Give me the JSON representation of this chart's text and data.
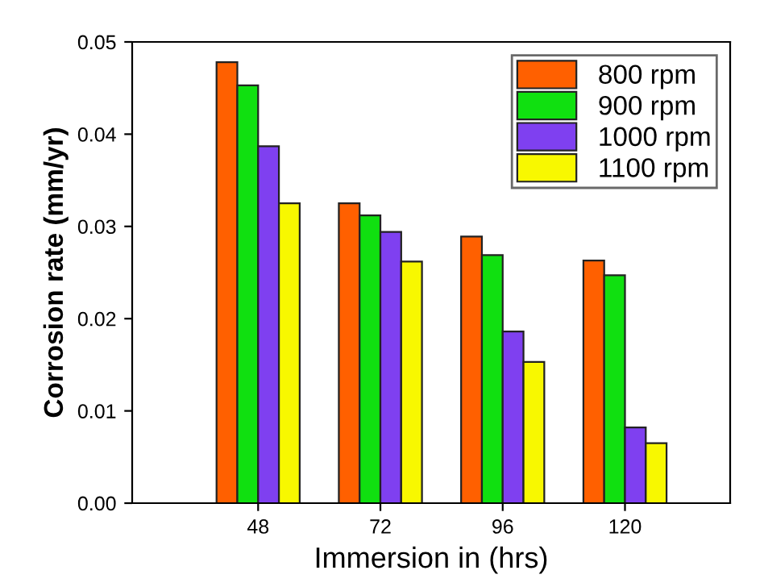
{
  "chart_data": {
    "type": "bar",
    "xlabel": "Immersion in (hrs)",
    "ylabel": "Corrosion rate (mm/yr)",
    "categories": [
      "48",
      "72",
      "96",
      "120"
    ],
    "series": [
      {
        "name": "800 rpm",
        "color": "#ff6000",
        "values": [
          0.0478,
          0.0325,
          0.0289,
          0.0263
        ]
      },
      {
        "name": "900 rpm",
        "color": "#10e010",
        "values": [
          0.0453,
          0.0312,
          0.0269,
          0.0247
        ]
      },
      {
        "name": "1000 rpm",
        "color": "#7f40f0",
        "values": [
          0.0387,
          0.0294,
          0.0186,
          0.0082
        ]
      },
      {
        "name": "1100 rpm",
        "color": "#f8f800",
        "values": [
          0.0325,
          0.0262,
          0.0153,
          0.0065
        ]
      }
    ],
    "ylim": [
      0,
      0.05
    ],
    "yticks": [
      {
        "value": 0,
        "label": "0.00"
      },
      {
        "value": 0.01,
        "label": "0.01"
      },
      {
        "value": 0.02,
        "label": "0.02"
      },
      {
        "value": 0.03,
        "label": "0.03"
      },
      {
        "value": 0.04,
        "label": "0.04"
      },
      {
        "value": 0.05,
        "label": "0.05"
      }
    ],
    "legend": "top right",
    "grid": false
  }
}
